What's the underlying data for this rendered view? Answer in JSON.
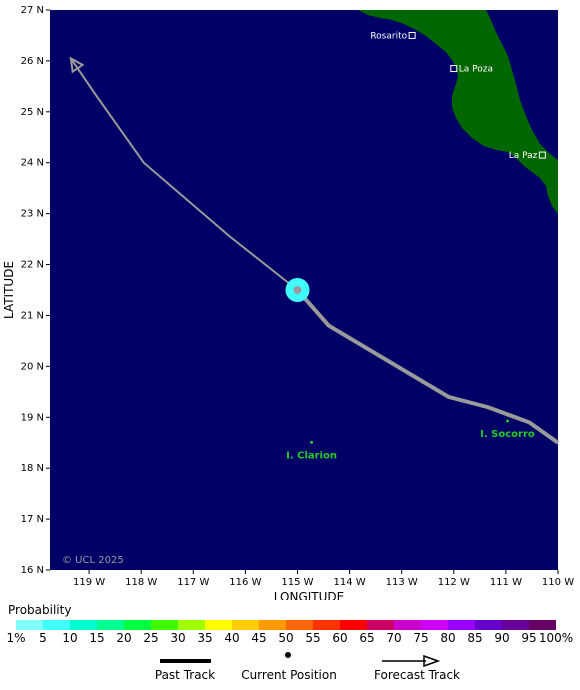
{
  "map": {
    "lon_range": [
      -119.75,
      -110.0
    ],
    "lat_range": [
      16,
      27
    ],
    "ocean_color": "#000066",
    "land_color": "#006600",
    "track_color": "#9a9a9a",
    "lat_ticks": [
      "27 N",
      "26 N",
      "25 N",
      "24 N",
      "23 N",
      "22 N",
      "21 N",
      "20 N",
      "19 N",
      "18 N",
      "17 N",
      "16 N"
    ],
    "lat_values": [
      27,
      26,
      25,
      24,
      23,
      22,
      21,
      20,
      19,
      18,
      17,
      16
    ],
    "lon_ticks": [
      "119 W",
      "118 W",
      "117 W",
      "116 W",
      "115 W",
      "114 W",
      "113 W",
      "112 W",
      "111 W",
      "110 W"
    ],
    "lon_values": [
      -119,
      -118,
      -117,
      -116,
      -115,
      -114,
      -113,
      -112,
      -111,
      -110
    ],
    "xlabel": "LONGITUDE",
    "ylabel": "LATITUDE",
    "places": [
      {
        "name": "Rosarito",
        "lon": -112.8,
        "lat": 26.5
      },
      {
        "name": "La Poza",
        "lon": -112.0,
        "lat": 25.85
      },
      {
        "name": "La Paz",
        "lon": -110.3,
        "lat": 24.15
      }
    ],
    "islands": [
      {
        "name": "I. Clarion",
        "lon": -114.73,
        "lat": 18.35
      },
      {
        "name": "I. Socorro",
        "lon": -110.97,
        "lat": 18.77
      }
    ],
    "copyright": "© UCL 2025",
    "current_position": {
      "lon": -115.0,
      "lat": 21.5
    },
    "forecast_track": [
      {
        "lon": -115.0,
        "lat": 21.5
      },
      {
        "lon": -116.3,
        "lat": 22.55
      },
      {
        "lon": -117.95,
        "lat": 24.0
      },
      {
        "lon": -118.85,
        "lat": 25.3
      },
      {
        "lon": -119.35,
        "lat": 26.05
      }
    ],
    "past_track": [
      {
        "lon": -110.0,
        "lat": 18.5
      },
      {
        "lon": -110.55,
        "lat": 18.9
      },
      {
        "lon": -111.35,
        "lat": 19.2
      },
      {
        "lon": -112.1,
        "lat": 19.4
      },
      {
        "lon": -114.4,
        "lat": 20.8
      },
      {
        "lon": -115.0,
        "lat": 21.5
      }
    ]
  },
  "legend": {
    "title": "Probability",
    "colors": [
      "#80ffff",
      "#40ffff",
      "#00ffd0",
      "#00ff90",
      "#00ff40",
      "#40ff00",
      "#a0ff00",
      "#ffff00",
      "#ffcc00",
      "#ff9900",
      "#ff6600",
      "#ff3300",
      "#ff0000",
      "#cc0066",
      "#cc00cc",
      "#cc00ff",
      "#9900ff",
      "#6600cc",
      "#660099",
      "#660066"
    ],
    "labels": [
      "1%",
      "5",
      "10",
      "15",
      "20",
      "25",
      "30",
      "35",
      "40",
      "45",
      "50",
      "55",
      "60",
      "65",
      "70",
      "75",
      "80",
      "85",
      "90",
      "95",
      "100%"
    ],
    "past_track_label": "Past Track",
    "current_position_label": "Current Position",
    "forecast_track_label": "Forecast Track"
  }
}
